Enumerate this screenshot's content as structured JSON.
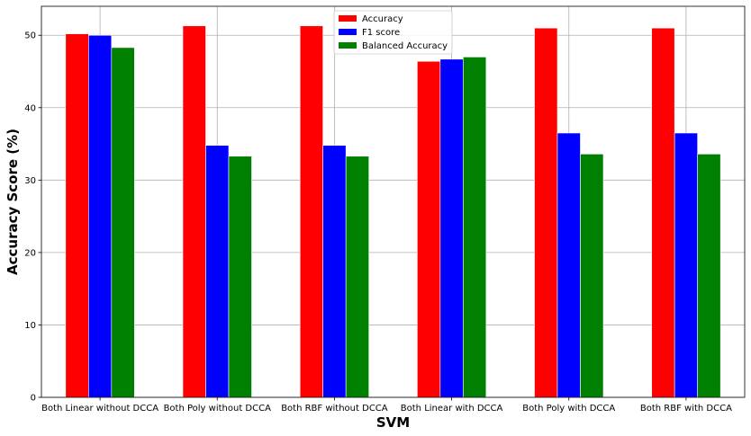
{
  "chart_data": {
    "type": "bar",
    "title": "",
    "xlabel": "SVM",
    "ylabel": "Accuracy Score (%)",
    "ylim": [
      0,
      54
    ],
    "yticks": [
      0,
      10,
      20,
      30,
      40,
      50
    ],
    "grid": true,
    "legend_position": "top-center",
    "categories": [
      "Both Linear without DCCA",
      "Both Poly without DCCA",
      "Both RBF without DCCA",
      "Both Linear with DCCA",
      "Both Poly with DCCA",
      "Both RBF with DCCA"
    ],
    "series": [
      {
        "name": "Accuracy",
        "color": "#ff0000",
        "values": [
          50.2,
          51.3,
          51.3,
          46.4,
          51.0,
          51.0
        ]
      },
      {
        "name": "F1 score",
        "color": "#0000ff",
        "values": [
          50.0,
          34.8,
          34.8,
          46.7,
          36.5,
          36.5
        ]
      },
      {
        "name": "Balanced Accuracy",
        "color": "#008000",
        "values": [
          48.3,
          33.3,
          33.3,
          47.0,
          33.6,
          33.6
        ]
      }
    ]
  }
}
